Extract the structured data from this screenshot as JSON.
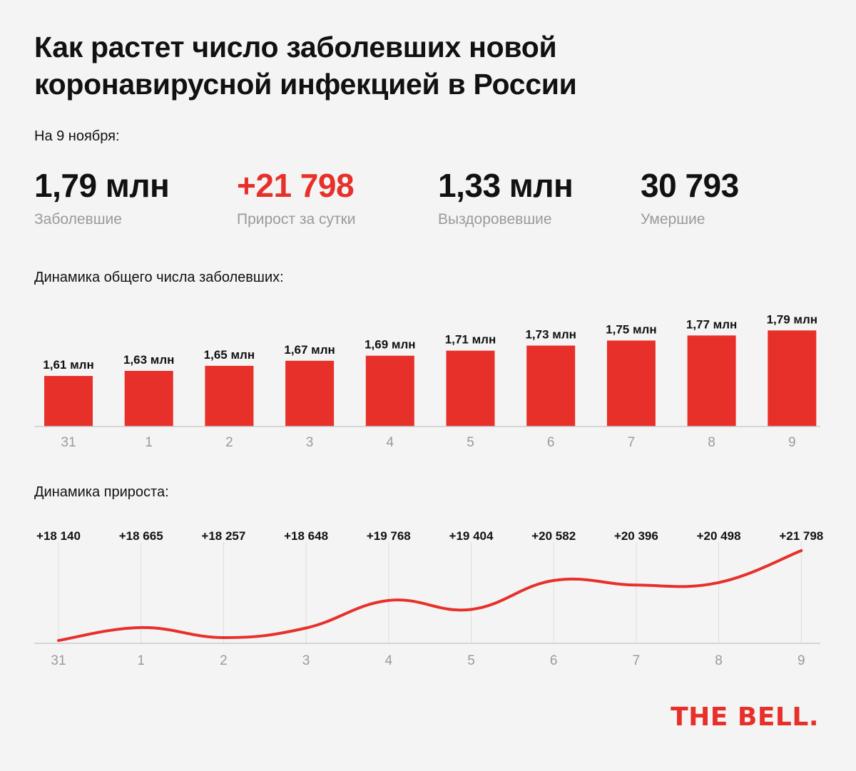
{
  "title": {
    "line1": "Как растет число заболевших новой",
    "line2": "коронавирусной инфекцией в России"
  },
  "date_label": "На 9 ноября:",
  "stats": [
    {
      "value": "1,79 млн",
      "caption": "Заболевшие"
    },
    {
      "value": "+21 798",
      "caption": "Прирост за сутки"
    },
    {
      "value": "1,33 млн",
      "caption": "Выздоровевшие"
    },
    {
      "value": "30 793",
      "caption": "Умершие"
    }
  ],
  "colors": {
    "accent": "#e8302a",
    "text": "#111111",
    "muted": "#9a9a9a",
    "background": "#f4f4f4",
    "grid": "#dddddd"
  },
  "chart_data": [
    {
      "type": "bar",
      "title": "Динамика общего числа заболевших:",
      "categories": [
        "31",
        "1",
        "2",
        "3",
        "4",
        "5",
        "6",
        "7",
        "8",
        "9"
      ],
      "values": [
        1.61,
        1.63,
        1.65,
        1.67,
        1.69,
        1.71,
        1.73,
        1.75,
        1.77,
        1.79
      ],
      "value_labels": [
        "1,61 млн",
        "1,63 млн",
        "1,65 млн",
        "1,67 млн",
        "1,69 млн",
        "1,71 млн",
        "1,73 млн",
        "1,75 млн",
        "1,77 млн",
        "1,79 млн"
      ],
      "unit": "млн",
      "ylim": [
        0,
        1.85
      ],
      "grid": false
    },
    {
      "type": "line",
      "title": "Динамика прироста:",
      "categories": [
        "31",
        "1",
        "2",
        "3",
        "4",
        "5",
        "6",
        "7",
        "8",
        "9"
      ],
      "values": [
        18140,
        18665,
        18257,
        18648,
        19768,
        19404,
        20582,
        20396,
        20498,
        21798
      ],
      "value_labels": [
        "+18 140",
        "+18 665",
        "+18 257",
        "+18 648",
        "+19 768",
        "+19 404",
        "+20 582",
        "+20 396",
        "+20 498",
        "+21 798"
      ],
      "ylim": [
        18140,
        21798
      ],
      "grid": true
    }
  ],
  "logo": "THE BELL."
}
